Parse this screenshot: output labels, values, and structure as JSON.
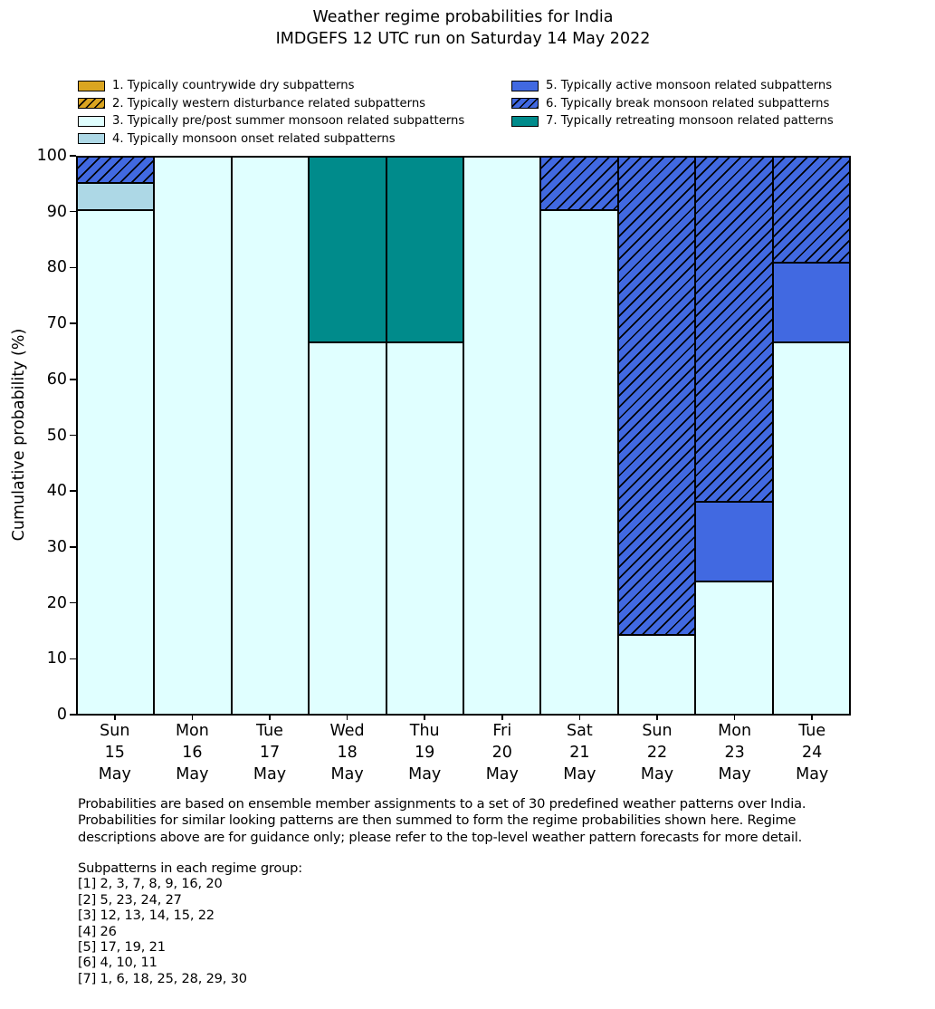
{
  "title": {
    "line1": "Weather regime probabilities for India",
    "line2": "IMDGEFS 12 UTC run on Saturday 14 May 2022"
  },
  "chart_data": {
    "type": "bar",
    "stacked": true,
    "title": "Weather regime probabilities for India",
    "subtitle": "IMDGEFS 12 UTC run on Saturday 14 May 2022",
    "ylabel": "Cumulative probability (%)",
    "ylim": [
      0,
      100
    ],
    "yticks": [
      0,
      10,
      20,
      30,
      40,
      50,
      60,
      70,
      80,
      90,
      100
    ],
    "grid": false,
    "legend_position": "top, two columns",
    "categories": [
      [
        "Sun",
        "15",
        "May"
      ],
      [
        "Mon",
        "16",
        "May"
      ],
      [
        "Tue",
        "17",
        "May"
      ],
      [
        "Wed",
        "18",
        "May"
      ],
      [
        "Thu",
        "19",
        "May"
      ],
      [
        "Fri",
        "20",
        "May"
      ],
      [
        "Sat",
        "21",
        "May"
      ],
      [
        "Sun",
        "22",
        "May"
      ],
      [
        "Mon",
        "23",
        "May"
      ],
      [
        "Tue",
        "24",
        "May"
      ]
    ],
    "regimes": [
      {
        "num": 1,
        "label": "1. Typically countrywide dry subpatterns",
        "color": "#DAA520",
        "hatch": false
      },
      {
        "num": 2,
        "label": "2. Typically western disturbance related subpatterns",
        "color": "#DAA520",
        "hatch": true
      },
      {
        "num": 3,
        "label": "3. Typically pre/post summer monsoon related subpatterns",
        "color": "#E0FFFF",
        "hatch": false
      },
      {
        "num": 4,
        "label": "4. Typically monsoon onset related subpatterns",
        "color": "#ADD8E6",
        "hatch": false
      },
      {
        "num": 5,
        "label": "5. Typically active monsoon related subpatterns",
        "color": "#4169E1",
        "hatch": false
      },
      {
        "num": 6,
        "label": "6. Typically break monsoon related subpatterns",
        "color": "#4169E1",
        "hatch": true
      },
      {
        "num": 7,
        "label": "7. Typically retreating monsoon related patterns",
        "color": "#008B8B",
        "hatch": false
      }
    ],
    "legend_columns": [
      [
        1,
        2,
        3,
        4
      ],
      [
        5,
        6,
        7
      ]
    ],
    "bars": [
      {
        "category": "Sun 15 May",
        "segments": [
          {
            "regime": 3,
            "value": 90.48
          },
          {
            "regime": 4,
            "value": 4.76
          },
          {
            "regime": 6,
            "value": 4.76
          }
        ]
      },
      {
        "category": "Mon 16 May",
        "segments": [
          {
            "regime": 3,
            "value": 100
          }
        ]
      },
      {
        "category": "Tue 17 May",
        "segments": [
          {
            "regime": 3,
            "value": 100
          }
        ]
      },
      {
        "category": "Wed 18 May",
        "segments": [
          {
            "regime": 3,
            "value": 66.67
          },
          {
            "regime": 7,
            "value": 33.33
          }
        ]
      },
      {
        "category": "Thu 19 May",
        "segments": [
          {
            "regime": 3,
            "value": 66.67
          },
          {
            "regime": 7,
            "value": 33.33
          }
        ]
      },
      {
        "category": "Fri 20 May",
        "segments": [
          {
            "regime": 3,
            "value": 100
          }
        ]
      },
      {
        "category": "Sat 21 May",
        "segments": [
          {
            "regime": 3,
            "value": 90.48
          },
          {
            "regime": 6,
            "value": 9.52
          }
        ]
      },
      {
        "category": "Sun 22 May",
        "segments": [
          {
            "regime": 3,
            "value": 14.29
          },
          {
            "regime": 6,
            "value": 85.71
          }
        ]
      },
      {
        "category": "Mon 23 May",
        "segments": [
          {
            "regime": 3,
            "value": 23.81
          },
          {
            "regime": 5,
            "value": 14.29
          },
          {
            "regime": 6,
            "value": 61.9
          }
        ]
      },
      {
        "category": "Tue 24 May",
        "segments": [
          {
            "regime": 3,
            "value": 66.67
          },
          {
            "regime": 5,
            "value": 14.28
          },
          {
            "regime": 6,
            "value": 19.05
          }
        ]
      }
    ]
  },
  "footer": {
    "lines": [
      "Probabilities are based on ensemble member assignments to a set of 30 predefined weather patterns over India.",
      "Probabilities for similar looking patterns are then summed to form the regime probabilities shown here. Regime",
      "descriptions above are for guidance only; please refer to the top-level weather pattern forecasts for more detail."
    ]
  },
  "subpatterns": {
    "heading": "Subpatterns in each regime group:",
    "groups": [
      "[1] 2, 3, 7, 8, 9, 16, 20",
      "[2] 5, 23, 24, 27",
      "[3] 12, 13, 14, 15, 22",
      "[4] 26",
      "[5] 17, 19, 21",
      "[6] 4, 10, 11",
      "[7] 1, 6, 18, 25, 28, 29, 30"
    ]
  }
}
